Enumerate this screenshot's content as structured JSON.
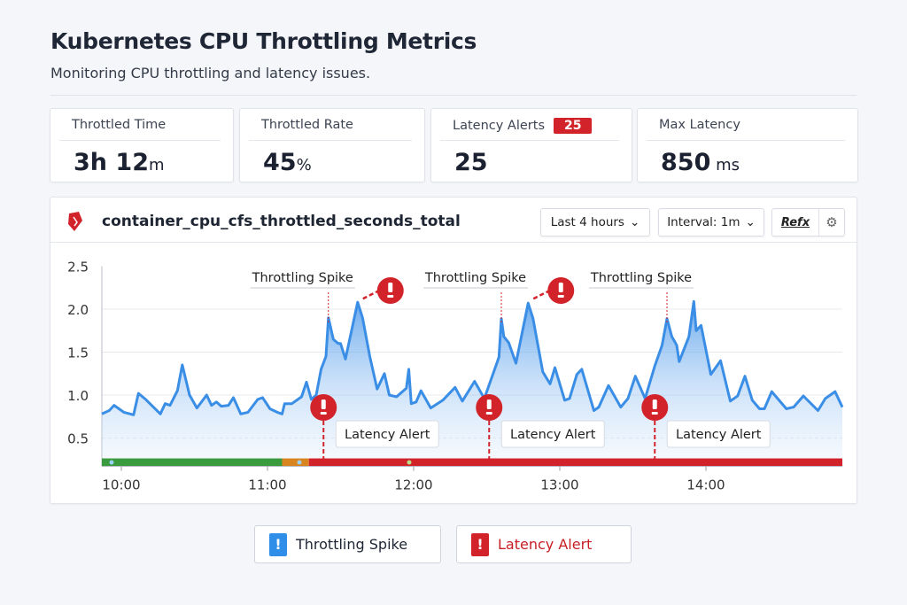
{
  "header": {
    "title": "Kubernetes CPU Throttling Metrics",
    "subtitle": "Monitoring CPU throttling and latency issues."
  },
  "stats": [
    {
      "label": "Throttled Time",
      "value": "3h 12",
      "unit": "m"
    },
    {
      "label": "Throttled Rate",
      "value": "45",
      "unit": "%"
    },
    {
      "label": "Latency Alerts",
      "badge": "25",
      "value": "25",
      "unit": ""
    },
    {
      "label": "Max Latency",
      "value": "850",
      "unit": " ms"
    }
  ],
  "panel": {
    "title": "container_cpu_cfs_throttled_seconds_total",
    "time_range": "Last 4 hours",
    "interval": "Interval: 1m",
    "refresh_label": "Refx",
    "icon": "metric-icon"
  },
  "legend": {
    "throttling": "Throttling Spike",
    "latency": "Latency Alert"
  },
  "colors": {
    "line": "#3a8ee6",
    "alert": "#d2232a",
    "ok": "#3a9a3e",
    "warn": "#d9851f"
  },
  "chart_data": {
    "type": "line",
    "x_ticks": [
      "10:00",
      "11:00",
      "12:00",
      "13:00",
      "14:00"
    ],
    "y_ticks": [
      "2.5",
      "2.0",
      "1.5",
      "1.0",
      "0.5"
    ],
    "ylim": [
      0.17,
      2.5
    ],
    "xlim": [
      "09:52",
      "14:56"
    ],
    "grid": true,
    "series": [
      {
        "points": [
          [
            "09:52",
            0.78
          ],
          [
            "09:55",
            0.82
          ],
          [
            "09:57",
            0.88
          ],
          [
            "10:01",
            0.8
          ],
          [
            "10:05",
            0.77
          ],
          [
            "10:07",
            1.02
          ],
          [
            "10:10",
            0.95
          ],
          [
            "10:16",
            0.78
          ],
          [
            "10:18",
            0.9
          ],
          [
            "10:20",
            0.88
          ],
          [
            "10:23",
            1.05
          ],
          [
            "10:25",
            1.35
          ],
          [
            "10:28",
            1.0
          ],
          [
            "10:31",
            0.85
          ],
          [
            "10:35",
            1.0
          ],
          [
            "10:37",
            0.88
          ],
          [
            "10:39",
            0.92
          ],
          [
            "10:41",
            0.87
          ],
          [
            "10:44",
            0.88
          ],
          [
            "10:46",
            0.97
          ],
          [
            "10:49",
            0.78
          ],
          [
            "10:52",
            0.8
          ],
          [
            "10:56",
            0.95
          ],
          [
            "10:58",
            0.97
          ],
          [
            "11:01",
            0.84
          ],
          [
            "11:04",
            0.8
          ],
          [
            "11:06",
            0.78
          ],
          [
            "11:07",
            0.9
          ],
          [
            "11:10",
            0.9
          ],
          [
            "11:14",
            0.98
          ],
          [
            "11:16",
            1.15
          ],
          [
            "11:18",
            0.95
          ],
          [
            "11:20",
            1.0
          ],
          [
            "11:22",
            1.3
          ],
          [
            "11:24",
            1.45
          ],
          [
            "11:25",
            1.9
          ],
          [
            "11:27",
            1.65
          ],
          [
            "11:29",
            1.6
          ],
          [
            "11:30",
            1.6
          ],
          [
            "11:32",
            1.42
          ],
          [
            "11:37",
            2.08
          ],
          [
            "11:39",
            1.9
          ],
          [
            "11:42",
            1.45
          ],
          [
            "11:45",
            1.07
          ],
          [
            "11:48",
            1.25
          ],
          [
            "11:50",
            1.0
          ],
          [
            "11:53",
            0.98
          ],
          [
            "11:57",
            1.08
          ],
          [
            "11:58",
            1.3
          ],
          [
            "11:59",
            0.9
          ],
          [
            "12:01",
            0.92
          ],
          [
            "12:03",
            1.05
          ],
          [
            "12:07",
            0.85
          ],
          [
            "12:12",
            0.94
          ],
          [
            "12:17",
            1.09
          ],
          [
            "12:20",
            0.93
          ],
          [
            "12:25",
            1.16
          ],
          [
            "12:29",
            0.96
          ],
          [
            "12:35",
            1.44
          ],
          [
            "12:36",
            1.89
          ],
          [
            "12:37",
            1.68
          ],
          [
            "12:39",
            1.61
          ],
          [
            "12:42",
            1.37
          ],
          [
            "12:47",
            2.07
          ],
          [
            "12:49",
            1.89
          ],
          [
            "12:53",
            1.27
          ],
          [
            "12:56",
            1.13
          ],
          [
            "12:58",
            1.32
          ],
          [
            "13:02",
            0.94
          ],
          [
            "13:04",
            0.96
          ],
          [
            "13:07",
            1.24
          ],
          [
            "13:09",
            1.3
          ],
          [
            "13:14",
            0.82
          ],
          [
            "13:16",
            0.86
          ],
          [
            "13:20",
            1.11
          ],
          [
            "13:25",
            0.86
          ],
          [
            "13:28",
            0.96
          ],
          [
            "13:31",
            1.22
          ],
          [
            "13:35",
            0.96
          ],
          [
            "13:39",
            1.34
          ],
          [
            "13:42",
            1.58
          ],
          [
            "13:44",
            1.89
          ],
          [
            "13:46",
            1.68
          ],
          [
            "13:48",
            1.58
          ],
          [
            "13:49",
            1.39
          ],
          [
            "13:53",
            1.68
          ],
          [
            "13:55",
            2.09
          ],
          [
            "13:56",
            1.75
          ],
          [
            "13:58",
            1.81
          ],
          [
            "14:02",
            1.24
          ],
          [
            "14:06",
            1.4
          ],
          [
            "14:10",
            0.93
          ],
          [
            "14:13",
            0.99
          ],
          [
            "14:16",
            1.22
          ],
          [
            "14:19",
            0.94
          ],
          [
            "14:22",
            0.84
          ],
          [
            "14:24",
            0.84
          ],
          [
            "14:27",
            1.04
          ],
          [
            "14:33",
            0.84
          ],
          [
            "14:36",
            0.86
          ],
          [
            "14:40",
            0.99
          ],
          [
            "14:46",
            0.82
          ],
          [
            "14:49",
            0.96
          ],
          [
            "14:53",
            1.04
          ],
          [
            "14:56",
            0.86
          ]
        ]
      }
    ],
    "annotations": {
      "throttling_spikes": [
        {
          "time": "11:25",
          "label": "Throttling Spike"
        },
        {
          "time": "12:36",
          "label": "Throttling Spike"
        },
        {
          "time": "13:44",
          "label": "Throttling Spike"
        }
      ],
      "peak_alerts": [
        "11:37",
        "12:47"
      ],
      "latency_alerts": [
        {
          "time": "11:23",
          "label": "Latency Alert"
        },
        {
          "time": "12:31",
          "label": "Latency Alert"
        },
        {
          "time": "13:39",
          "label": "Latency Alert"
        }
      ]
    },
    "status_bar": [
      {
        "from": "09:52",
        "to": "11:06",
        "state": "ok"
      },
      {
        "from": "11:06",
        "to": "11:17",
        "state": "warn"
      },
      {
        "from": "11:17",
        "to": "14:56",
        "state": "alert"
      }
    ]
  }
}
